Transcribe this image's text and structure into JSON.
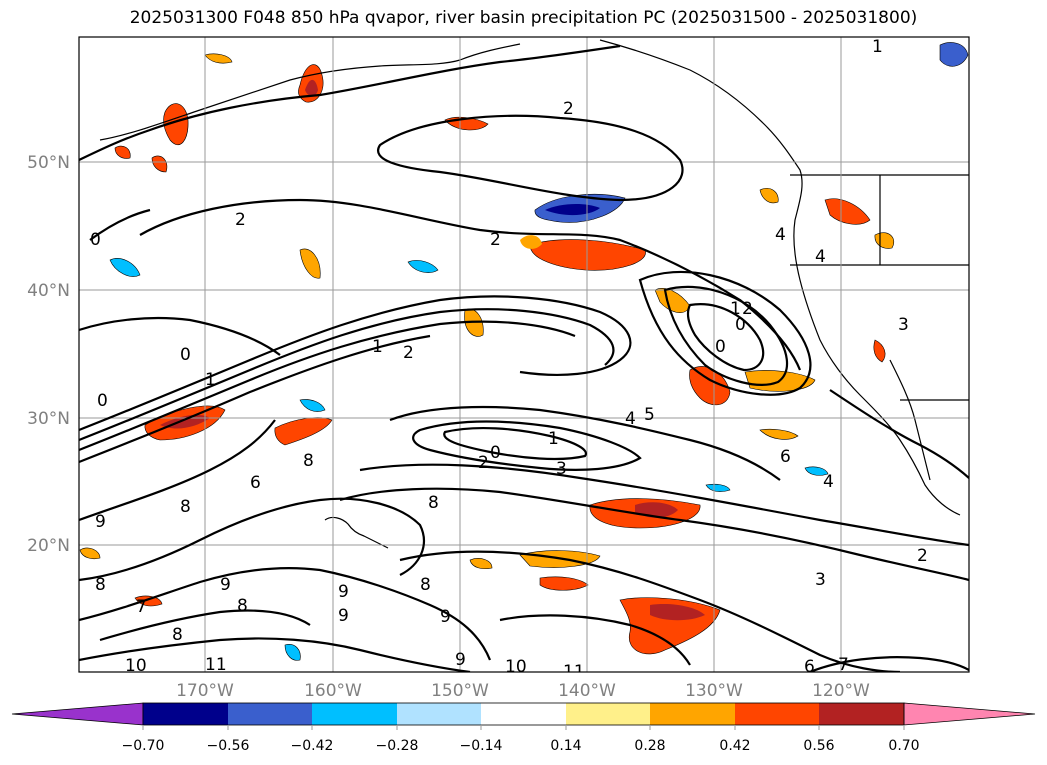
{
  "title": "2025031300 F048 850 hPa qvapor, river basin precipitation PC (2025031500 - 2025031800)",
  "latitude_labels": [
    "50°N",
    "40°N",
    "30°N",
    "20°N"
  ],
  "longitude_labels": [
    "170°W",
    "160°W",
    "150°W",
    "140°W",
    "130°W",
    "120°W"
  ],
  "colorbar": {
    "tick_labels": [
      "−0.70",
      "−0.56",
      "−0.42",
      "−0.28",
      "−0.14",
      "0.14",
      "0.28",
      "0.42",
      "0.56",
      "0.70"
    ],
    "colors": [
      "#9932cc",
      "#00008b",
      "#3a5fcd",
      "#00bfff",
      "#b0e2ff",
      "#ffffff",
      "#fff08a",
      "#ffa500",
      "#ff4500",
      "#b22222",
      "#ff85b0"
    ]
  },
  "contour_labels": [
    {
      "text": "2"
    },
    {
      "text": "2"
    },
    {
      "text": "2"
    },
    {
      "text": "0"
    },
    {
      "text": "4"
    },
    {
      "text": "4"
    },
    {
      "text": "1"
    },
    {
      "text": "2"
    },
    {
      "text": "0"
    },
    {
      "text": "0"
    },
    {
      "text": "1"
    },
    {
      "text": "0"
    },
    {
      "text": "0"
    },
    {
      "text": "1"
    },
    {
      "text": "2"
    },
    {
      "text": "4"
    },
    {
      "text": "5"
    },
    {
      "text": "1"
    },
    {
      "text": "0"
    },
    {
      "text": "2"
    },
    {
      "text": "3"
    },
    {
      "text": "6"
    },
    {
      "text": "4"
    },
    {
      "text": "8"
    },
    {
      "text": "9"
    },
    {
      "text": "8"
    },
    {
      "text": "6"
    },
    {
      "text": "2"
    },
    {
      "text": "3"
    },
    {
      "text": "9"
    },
    {
      "text": "9"
    },
    {
      "text": "9"
    },
    {
      "text": "8"
    },
    {
      "text": "7"
    },
    {
      "text": "8"
    },
    {
      "text": "9"
    },
    {
      "text": "10"
    },
    {
      "text": "11"
    },
    {
      "text": "9"
    },
    {
      "text": "10"
    },
    {
      "text": "11"
    },
    {
      "text": "6"
    },
    {
      "text": "7"
    },
    {
      "text": "1"
    },
    {
      "text": "3"
    },
    {
      "text": "8"
    },
    {
      "text": "8"
    },
    {
      "text": "8"
    }
  ]
}
